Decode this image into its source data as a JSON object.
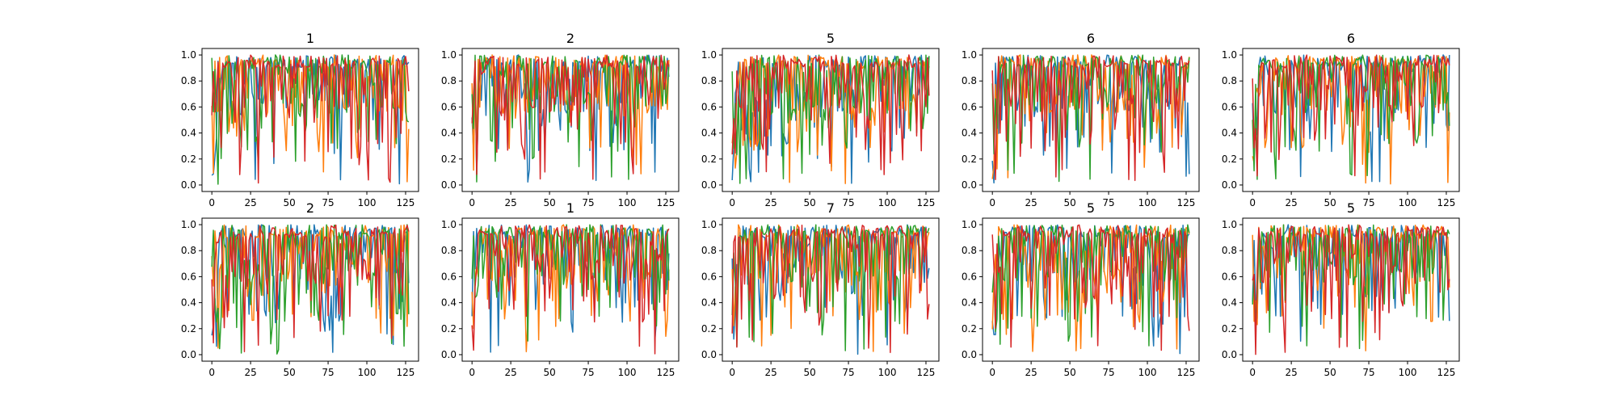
{
  "figure": {
    "background": "#ffffff"
  },
  "colors": [
    "#1f77b4",
    "#ff7f0e",
    "#2ca02c",
    "#d62728"
  ],
  "chart_data": [
    {
      "type": "line",
      "title": "1",
      "xlim": [
        0,
        127
      ],
      "ylim": [
        0,
        1
      ],
      "xticks": [
        0,
        25,
        50,
        75,
        100,
        125
      ],
      "yticks": [
        0.0,
        0.2,
        0.4,
        0.6,
        0.8,
        1.0
      ],
      "grid": false,
      "seed": 11
    },
    {
      "type": "line",
      "title": "2",
      "xlim": [
        0,
        127
      ],
      "ylim": [
        0,
        1
      ],
      "xticks": [
        0,
        25,
        50,
        75,
        100,
        125
      ],
      "yticks": [
        0.0,
        0.2,
        0.4,
        0.6,
        0.8,
        1.0
      ],
      "grid": false,
      "seed": 23
    },
    {
      "type": "line",
      "title": "5",
      "xlim": [
        0,
        127
      ],
      "ylim": [
        0,
        1
      ],
      "xticks": [
        0,
        25,
        50,
        75,
        100,
        125
      ],
      "yticks": [
        0.0,
        0.2,
        0.4,
        0.6,
        0.8,
        1.0
      ],
      "grid": false,
      "seed": 37
    },
    {
      "type": "line",
      "title": "6",
      "xlim": [
        0,
        127
      ],
      "ylim": [
        0,
        1
      ],
      "xticks": [
        0,
        25,
        50,
        75,
        100,
        125
      ],
      "yticks": [
        0.0,
        0.2,
        0.4,
        0.6,
        0.8,
        1.0
      ],
      "grid": false,
      "seed": 41
    },
    {
      "type": "line",
      "title": "6",
      "xlim": [
        0,
        127
      ],
      "ylim": [
        0,
        1
      ],
      "xticks": [
        0,
        25,
        50,
        75,
        100,
        125
      ],
      "yticks": [
        0.0,
        0.2,
        0.4,
        0.6,
        0.8,
        1.0
      ],
      "grid": false,
      "seed": 53
    },
    {
      "type": "line",
      "title": "2",
      "xlim": [
        0,
        127
      ],
      "ylim": [
        0,
        1
      ],
      "xticks": [
        0,
        25,
        50,
        75,
        100,
        125
      ],
      "yticks": [
        0.0,
        0.2,
        0.4,
        0.6,
        0.8,
        1.0
      ],
      "grid": false,
      "seed": 67
    },
    {
      "type": "line",
      "title": "1",
      "xlim": [
        0,
        127
      ],
      "ylim": [
        0,
        1
      ],
      "xticks": [
        0,
        25,
        50,
        75,
        100,
        125
      ],
      "yticks": [
        0.0,
        0.2,
        0.4,
        0.6,
        0.8,
        1.0
      ],
      "grid": false,
      "seed": 71
    },
    {
      "type": "line",
      "title": "7",
      "xlim": [
        0,
        127
      ],
      "ylim": [
        0,
        1
      ],
      "xticks": [
        0,
        25,
        50,
        75,
        100,
        125
      ],
      "yticks": [
        0.0,
        0.2,
        0.4,
        0.6,
        0.8,
        1.0
      ],
      "grid": false,
      "seed": 83
    },
    {
      "type": "line",
      "title": "5",
      "xlim": [
        0,
        127
      ],
      "ylim": [
        0,
        1
      ],
      "xticks": [
        0,
        25,
        50,
        75,
        100,
        125
      ],
      "yticks": [
        0.0,
        0.2,
        0.4,
        0.6,
        0.8,
        1.0
      ],
      "grid": false,
      "seed": 97
    },
    {
      "type": "line",
      "title": "5",
      "xlim": [
        0,
        127
      ],
      "ylim": [
        0,
        1
      ],
      "xticks": [
        0,
        25,
        50,
        75,
        100,
        125
      ],
      "yticks": [
        0.0,
        0.2,
        0.4,
        0.6,
        0.8,
        1.0
      ],
      "grid": false,
      "seed": 101
    }
  ]
}
